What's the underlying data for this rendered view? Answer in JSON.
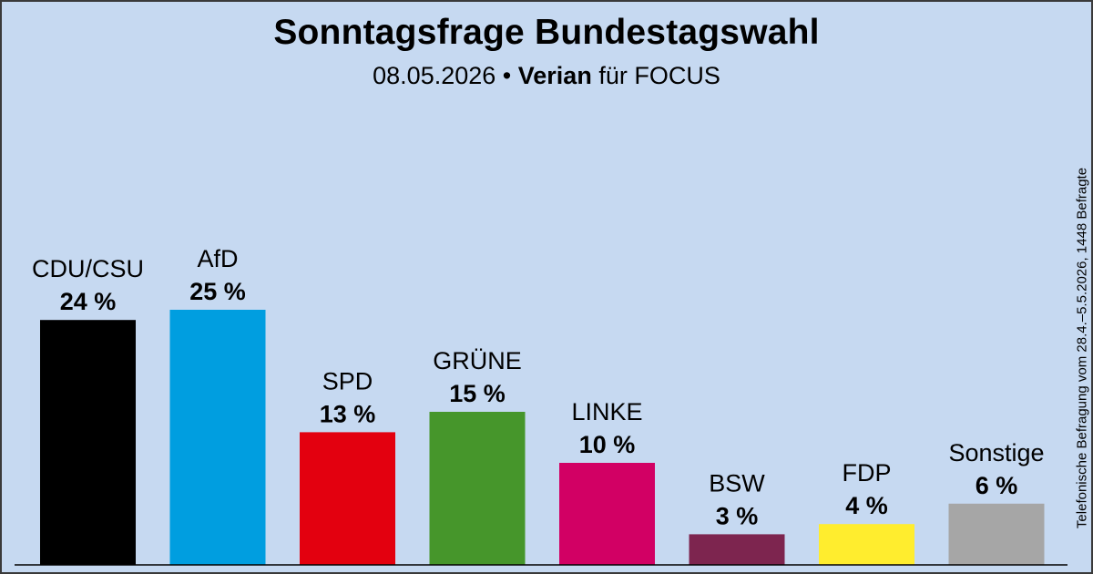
{
  "header": {
    "title": "Sonntagsfrage Bundestagswahl",
    "date": "08.05.2026",
    "separator": "•",
    "institute": "Verian",
    "client_text": "für FOCUS"
  },
  "side_note": "Telefonische Befragung vom 28.4.–5.5.2026, 1448 Befragte",
  "chart_data": {
    "type": "bar",
    "title": "Sonntagsfrage Bundestagswahl",
    "subtitle": "08.05.2026 • Verian für FOCUS",
    "categories": [
      "CDU/CSU",
      "AfD",
      "SPD",
      "GRÜNE",
      "LINKE",
      "BSW",
      "FDP",
      "Sonstige"
    ],
    "values": [
      24,
      25,
      13,
      15,
      10,
      3,
      4,
      6
    ],
    "value_labels": [
      "24 %",
      "25 %",
      "13 %",
      "15 %",
      "10 %",
      "3 %",
      "4 %",
      "6 %"
    ],
    "colors": [
      "#000000",
      "#009ee0",
      "#e3000f",
      "#46962b",
      "#d20064",
      "#7d254f",
      "#ffed2e",
      "#a6a6a6"
    ],
    "xlabel": "",
    "ylabel": "",
    "ylim": [
      0,
      25
    ],
    "grid": false,
    "legend": "none"
  }
}
